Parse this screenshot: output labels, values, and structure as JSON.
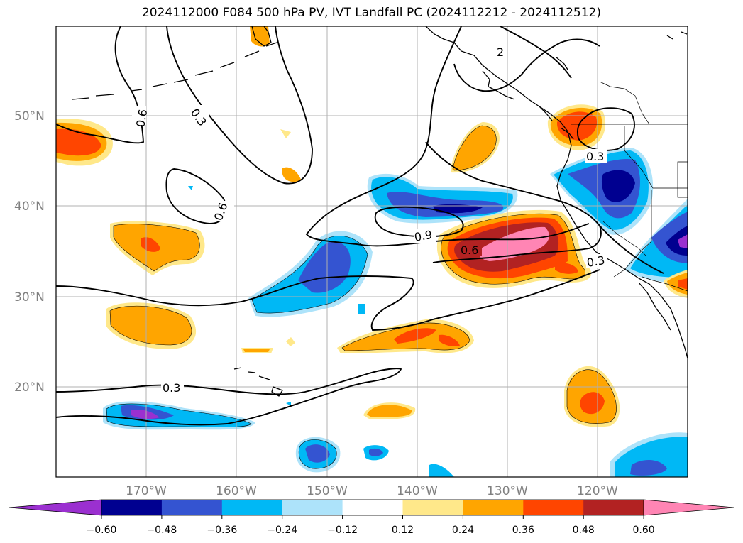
{
  "title": "2024112000 F084 500 hPa PV, IVT Landfall PC (2024112212 - 2024112512)",
  "axes": {
    "lat_ticks": [
      "50°N",
      "40°N",
      "30°N",
      "20°N"
    ],
    "lon_ticks": [
      "170°W",
      "160°W",
      "150°W",
      "140°W",
      "130°W",
      "120°W"
    ]
  },
  "contour_labels": [
    "0.6",
    "0.3",
    "0.6",
    "0.9",
    "0.6",
    "0.3",
    "0.3",
    "0.3",
    "2"
  ],
  "colorbar": {
    "ticks": [
      "−0.60",
      "−0.48",
      "−0.36",
      "−0.24",
      "−0.12",
      "0.12",
      "0.24",
      "0.36",
      "0.48",
      "0.60"
    ],
    "colors": [
      "#9b30d0",
      "#000090",
      "#3454d1",
      "#00b8f5",
      "#ade3fa",
      "#ffffff",
      "#ffe88a",
      "#ffa500",
      "#ff4500",
      "#b22222",
      "#ff85b4"
    ]
  },
  "map_data": {
    "projection": "PlateCarree",
    "extent": {
      "lon_min": -180,
      "lon_max": -110,
      "lat_min": 10,
      "lat_max": 60
    }
  }
}
